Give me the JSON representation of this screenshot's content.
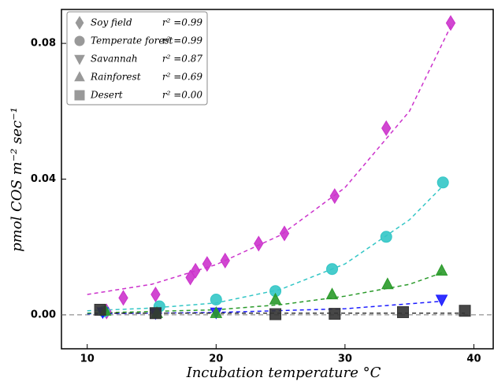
{
  "chart_data": {
    "type": "scatter",
    "xlabel": "Incubation temperature °C",
    "ylabel": "pmol COS m⁻² sec⁻¹",
    "xlim": [
      8,
      41.5
    ],
    "ylim": [
      -0.01,
      0.09
    ],
    "xticks": [
      10,
      20,
      30,
      40
    ],
    "yticks": [
      {
        "value": 0,
        "label": "0.00"
      },
      {
        "value": 0.04,
        "label": "0.04"
      },
      {
        "value": 0.08,
        "label": "0.08"
      }
    ],
    "hline": 0,
    "legend": "upper left",
    "series": [
      {
        "name": "Soy field",
        "r2_label": "r² =0.99",
        "color": "#cc33cc",
        "marker": "diamond",
        "x": [
          11.5,
          12.8,
          15.3,
          18,
          18.4,
          19.3,
          20.7,
          23.3,
          25.3,
          29.2,
          33.2,
          38.2
        ],
        "values": [
          0.001,
          0.005,
          0.006,
          0.011,
          0.013,
          0.015,
          0.016,
          0.021,
          0.024,
          0.035,
          0.055,
          0.086
        ],
        "fit_x": [
          10,
          15,
          20,
          25,
          30,
          35,
          38.2
        ],
        "fit_values": [
          0.006,
          0.009,
          0.0148,
          0.0235,
          0.0375,
          0.06,
          0.085
        ]
      },
      {
        "name": "Temperate forest",
        "r2_label": "r² =0.99",
        "color": "#33c6c6",
        "marker": "circle",
        "x": [
          11.3,
          15.6,
          20,
          24.6,
          29,
          33.2,
          37.6
        ],
        "values": [
          0.001,
          0.0025,
          0.0045,
          0.007,
          0.0135,
          0.023,
          0.039
        ],
        "fit_x": [
          10,
          15,
          20,
          25,
          30,
          35,
          37.6
        ],
        "fit_values": [
          0.0012,
          0.002,
          0.0035,
          0.0075,
          0.015,
          0.028,
          0.038
        ]
      },
      {
        "name": "Savannah",
        "r2_label": "r² =0.87",
        "color": "#1a1aff",
        "marker": "triangle-down",
        "x": [
          11.2,
          15.3,
          20,
          37.5
        ],
        "values": [
          0.0008,
          0.0005,
          0.0007,
          0.0045
        ],
        "fit_x": [
          10,
          20,
          30,
          37.5
        ],
        "fit_values": [
          0.0003,
          0.0007,
          0.0018,
          0.004
        ]
      },
      {
        "name": "Rainforest",
        "r2_label": "r² =0.69",
        "color": "#2a9a2a",
        "marker": "triangle-up",
        "x": [
          11.4,
          15.4,
          20,
          24.6,
          29,
          33.3,
          37.5
        ],
        "values": [
          0.0012,
          0.0005,
          0.0005,
          0.0045,
          0.006,
          0.009,
          0.013
        ],
        "fit_x": [
          10,
          20,
          25,
          30,
          35,
          37.6
        ],
        "fit_values": [
          0.0005,
          0.0015,
          0.003,
          0.0055,
          0.009,
          0.0125
        ]
      },
      {
        "name": "Desert",
        "r2_label": "r² =0.00",
        "color": "#333333",
        "marker": "square",
        "x": [
          11,
          15.3,
          24.6,
          29.2,
          34.5,
          39.3
        ],
        "values": [
          0.0015,
          0.0005,
          0.0002,
          0.0003,
          0.0008,
          0.0012
        ],
        "fit_x": [
          11,
          39.3
        ],
        "fit_values": [
          0.0005,
          0.0005
        ]
      }
    ]
  }
}
